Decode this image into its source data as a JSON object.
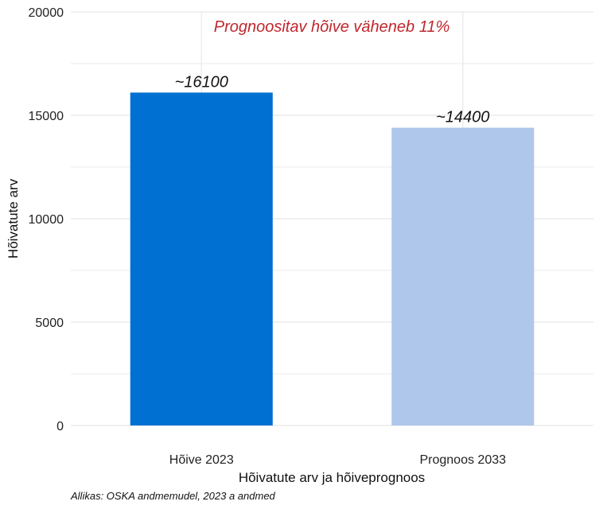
{
  "chart_data": {
    "type": "bar",
    "categories": [
      "Hõive 2023",
      "Prognoos 2033"
    ],
    "values": [
      16100,
      14400
    ],
    "data_labels": [
      "~16100",
      "~14400"
    ],
    "bar_colors": [
      "#0070d2",
      "#aec7ea"
    ],
    "xlabel": "Hõivatute arv ja hõiveprognoos",
    "ylabel": "Hõivatute arv",
    "ylim": [
      0,
      20000
    ],
    "yticks": [
      0,
      5000,
      10000,
      15000,
      20000
    ],
    "grid": true,
    "annotation": {
      "text": "Prognoositav hõive väheneb 11%",
      "color": "#c0272d"
    },
    "caption": "Allikas: OSKA andmemudel, 2023 a andmed"
  }
}
